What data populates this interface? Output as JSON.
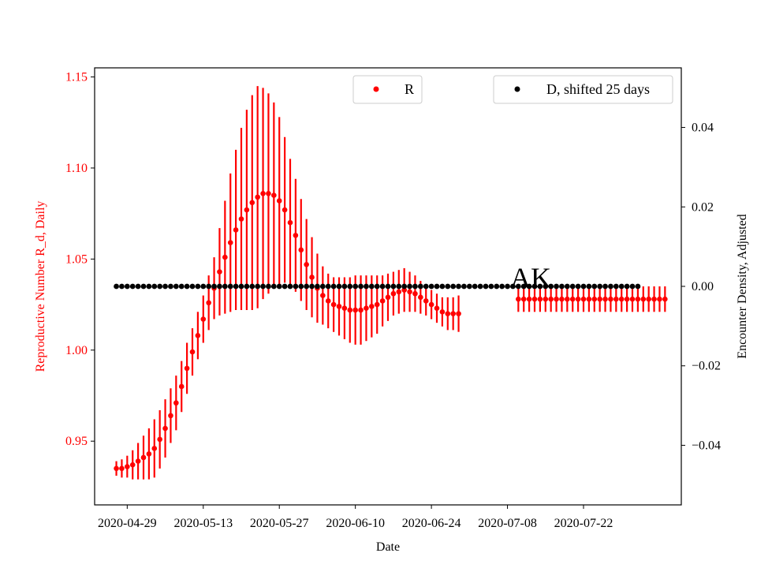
{
  "chart_data": {
    "type": "scatter",
    "annotation": "AK",
    "xlabel": "Date",
    "ylabel_left": "Reproductive Number R_d, Daily",
    "ylabel_right": "Encounter Density, Adjusted",
    "x_ticks": [
      "2020-04-29",
      "2020-05-13",
      "2020-05-27",
      "2020-06-10",
      "2020-06-24",
      "2020-07-08",
      "2020-07-22"
    ],
    "x_range": [
      "2020-04-23",
      "2020-08-09"
    ],
    "y_left_ticks": [
      0.95,
      1.0,
      1.05,
      1.1,
      1.15
    ],
    "y_left_range": [
      0.915,
      1.155
    ],
    "y_right_ticks": [
      -0.04,
      -0.02,
      0.0,
      0.02,
      0.04
    ],
    "y_right_range": [
      -0.055,
      0.055
    ],
    "colors": {
      "R": "#ff0000",
      "D": "#000000",
      "left_axis": "#ff0000"
    },
    "legend": [
      {
        "label": "R",
        "placement": "top-center",
        "color": "#ff0000"
      },
      {
        "label": "D, shifted 25 days",
        "placement": "top-right",
        "color": "#000000"
      }
    ],
    "series": [
      {
        "name": "R",
        "axis": "left",
        "x_start": "2020-04-27",
        "values": [
          0.935,
          0.935,
          0.936,
          0.937,
          0.939,
          0.941,
          0.943,
          0.946,
          0.951,
          0.957,
          0.964,
          0.971,
          0.98,
          0.99,
          0.999,
          1.008,
          1.017,
          1.026,
          1.034,
          1.043,
          1.051,
          1.059,
          1.066,
          1.072,
          1.077,
          1.081,
          1.084,
          1.086,
          1.086,
          1.085,
          1.082,
          1.077,
          1.07,
          1.063,
          1.055,
          1.047,
          1.04,
          1.034,
          1.03,
          1.027,
          1.025,
          1.024,
          1.023,
          1.022,
          1.022,
          1.022,
          1.023,
          1.024,
          1.025,
          1.027,
          1.029,
          1.031,
          1.032,
          1.033,
          1.032,
          1.031,
          1.029,
          1.027,
          1.025,
          1.023,
          1.021,
          1.02,
          1.02,
          1.02
        ],
        "err": [
          0.004,
          0.005,
          0.006,
          0.008,
          0.01,
          0.012,
          0.014,
          0.016,
          0.016,
          0.016,
          0.015,
          0.015,
          0.014,
          0.014,
          0.013,
          0.013,
          0.013,
          0.015,
          0.017,
          0.024,
          0.031,
          0.038,
          0.044,
          0.05,
          0.055,
          0.059,
          0.061,
          0.058,
          0.055,
          0.051,
          0.046,
          0.04,
          0.035,
          0.031,
          0.028,
          0.025,
          0.022,
          0.019,
          0.016,
          0.015,
          0.015,
          0.016,
          0.017,
          0.018,
          0.019,
          0.019,
          0.018,
          0.017,
          0.016,
          0.014,
          0.013,
          0.012,
          0.012,
          0.012,
          0.011,
          0.01,
          0.009,
          0.008,
          0.008,
          0.008,
          0.008,
          0.009,
          0.009,
          0.01
        ]
      },
      {
        "name": "R",
        "axis": "left",
        "x_start": "2020-07-10",
        "values": [
          1.028,
          1.028,
          1.028,
          1.028,
          1.028,
          1.028,
          1.028,
          1.028,
          1.028,
          1.028,
          1.028,
          1.028,
          1.028,
          1.028,
          1.028,
          1.028,
          1.028,
          1.028,
          1.028,
          1.028,
          1.028,
          1.028,
          1.028,
          1.028,
          1.028,
          1.028,
          1.028,
          1.028
        ],
        "err": [
          0.007,
          0.007,
          0.007,
          0.007,
          0.007,
          0.007,
          0.007,
          0.007,
          0.007,
          0.007,
          0.007,
          0.007,
          0.007,
          0.007,
          0.007,
          0.007,
          0.007,
          0.007,
          0.007,
          0.007,
          0.007,
          0.007,
          0.007,
          0.007,
          0.007,
          0.007,
          0.007,
          0.007
        ]
      },
      {
        "name": "D, shifted 25 days",
        "axis": "right",
        "x_start": "2020-04-27",
        "count": 97,
        "constant": 0.0
      }
    ]
  }
}
